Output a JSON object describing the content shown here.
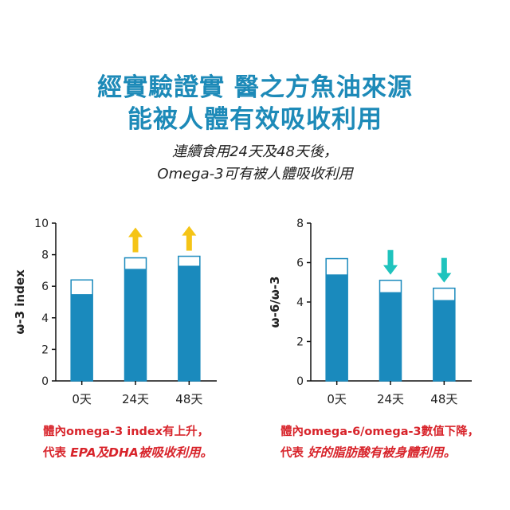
{
  "header": {
    "line1": "經實驗證實 醫之方魚油來源",
    "line2": "能被人體有效吸收利用"
  },
  "subheader": {
    "line1": "連續食用24天及48天後，",
    "line2": "Omega-3可有被人體吸收利用"
  },
  "colors": {
    "headline": "#1d8ab8",
    "bar_fill": "#1a8abd",
    "bar_outline": "#1a8abd",
    "arrow_up": "#f5c416",
    "arrow_down": "#1fc3bd",
    "caption": "#d8242b"
  },
  "chart_data": [
    {
      "type": "bar",
      "ylabel": "ω-3 index",
      "categories": [
        "0天",
        "24天",
        "48天"
      ],
      "ylim": [
        0,
        10
      ],
      "yticks": [
        "0",
        "2",
        "4",
        "6",
        "8",
        "10"
      ],
      "series": [
        {
          "values": [
            5.5,
            7.1,
            7.3
          ]
        },
        {
          "values": [
            6.4,
            7.8,
            7.9
          ]
        }
      ],
      "markers": [
        "",
        "arrow-up",
        "arrow-up"
      ],
      "grid": false
    },
    {
      "type": "bar",
      "ylabel": "ω-6/ω-3",
      "categories": [
        "0天",
        "24天",
        "48天"
      ],
      "ylim": [
        0,
        8
      ],
      "yticks": [
        "0",
        "2",
        "4",
        "6",
        "8"
      ],
      "series": [
        {
          "values": [
            5.4,
            4.5,
            4.1
          ]
        },
        {
          "values": [
            6.2,
            5.1,
            4.7
          ]
        }
      ],
      "markers": [
        "",
        "arrow-down",
        "arrow-down"
      ],
      "grid": false
    }
  ],
  "captions": {
    "left_line1": "體內omega-3 index有上升，",
    "left_line2_prefix": "代表",
    "left_line2_emph": "EPA及DHA被吸收利用。",
    "right_line1": "體內omega-6/omega-3數值下降，",
    "right_line2_prefix": "代表",
    "right_line2_emph": "好的脂肪酸有被身體利用。"
  }
}
